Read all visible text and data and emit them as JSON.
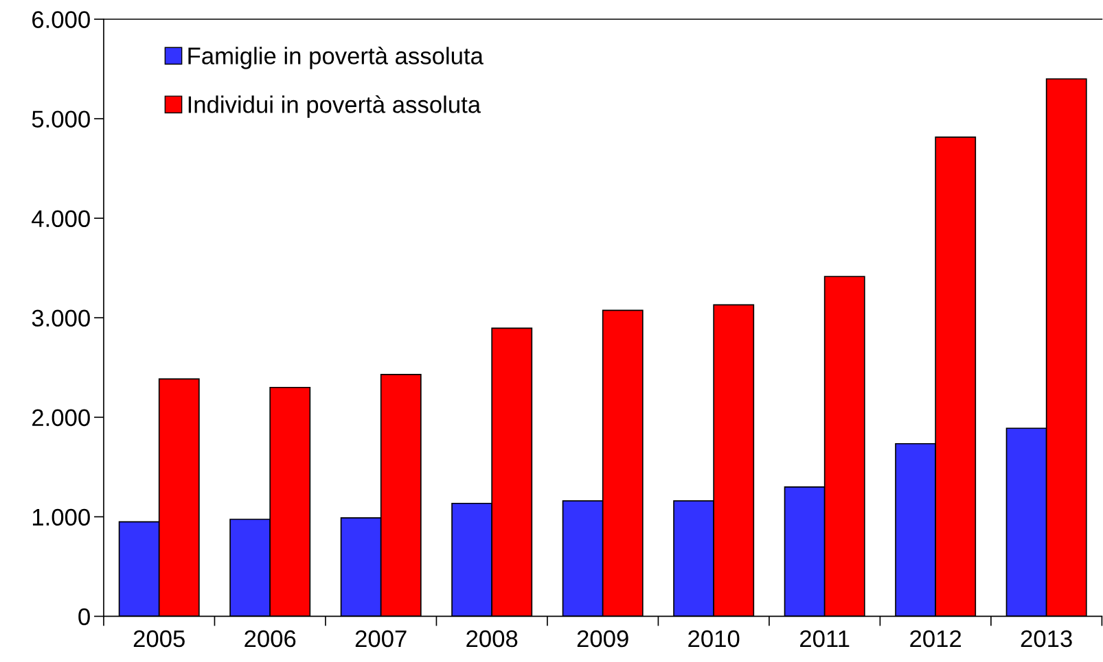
{
  "chart_data": {
    "type": "bar",
    "categories": [
      "2005",
      "2006",
      "2007",
      "2008",
      "2009",
      "2010",
      "2011",
      "2012",
      "2013"
    ],
    "series": [
      {
        "name": "Famiglie in povertà assoluta",
        "color": "#3333ff",
        "values": [
          950,
          975,
          990,
          1135,
          1160,
          1160,
          1300,
          1735,
          1890
        ]
      },
      {
        "name": "Individui in povertà assoluta",
        "color": "#ff0000",
        "values": [
          2385,
          2300,
          2430,
          2895,
          3075,
          3130,
          3415,
          4815,
          5400
        ]
      }
    ],
    "ylim": [
      0,
      6000
    ],
    "yticks": [
      0,
      {
        "value": 1000,
        "label": "1.000"
      },
      {
        "value": 2000,
        "label": "2.000"
      },
      {
        "value": 3000,
        "label": "3.000"
      },
      {
        "value": 4000,
        "label": "4.000"
      },
      {
        "value": 5000,
        "label": "5.000"
      },
      {
        "value": 6000,
        "label": "6.000"
      }
    ],
    "grid": false,
    "legend": "top left"
  }
}
